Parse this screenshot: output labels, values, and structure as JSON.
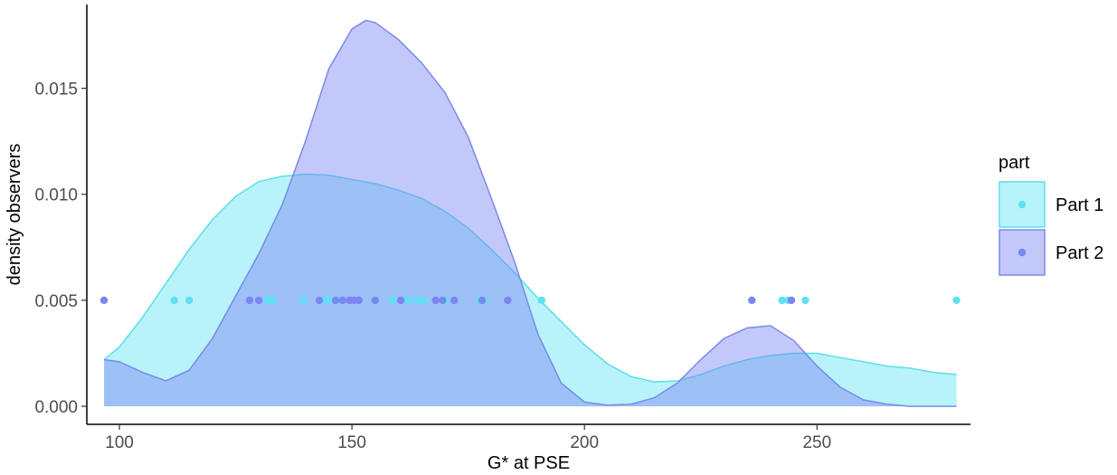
{
  "chart_data": {
    "type": "area",
    "title": "",
    "xlabel": "G* at PSE",
    "ylabel": "density observers",
    "xlim": [
      93,
      283
    ],
    "ylim": [
      -0.00085,
      0.01895
    ],
    "x_ticks": [
      100,
      150,
      200,
      250
    ],
    "x_tick_labels": [
      "100",
      "150",
      "200",
      "250"
    ],
    "y_ticks": [
      0.0,
      0.005,
      0.01,
      0.015
    ],
    "y_tick_labels": [
      "0.000",
      "0.005",
      "0.010",
      "0.015"
    ],
    "grid": false,
    "legend": {
      "title": "part",
      "placement": "right"
    },
    "point_y": 0.005,
    "series": [
      {
        "name": "Part 1",
        "fill": "#62E4F5",
        "fill_opacity": 0.45,
        "stroke": "#5CDDEB",
        "point_color": "#5FE0F5",
        "density_x": [
          96.7,
          100,
          105,
          110,
          115,
          120,
          125,
          130,
          135,
          140,
          145,
          150,
          155,
          160,
          165,
          170,
          175,
          180,
          185,
          190,
          195,
          200,
          205,
          210,
          215,
          220,
          225,
          230,
          235,
          240,
          245,
          250,
          255,
          260,
          265,
          270,
          275,
          280
        ],
        "density_y": [
          0.0022,
          0.0028,
          0.0042,
          0.0058,
          0.0074,
          0.0088,
          0.0099,
          0.0106,
          0.01085,
          0.01095,
          0.0109,
          0.0107,
          0.0105,
          0.0102,
          0.0098,
          0.0092,
          0.0084,
          0.0074,
          0.0063,
          0.0051,
          0.004,
          0.0029,
          0.002,
          0.0014,
          0.00115,
          0.0012,
          0.0015,
          0.0019,
          0.0022,
          0.0024,
          0.0025,
          0.0025,
          0.0023,
          0.0021,
          0.0019,
          0.0018,
          0.0016,
          0.0015
        ],
        "points": [
          111.8,
          115,
          131.8,
          133,
          139.6,
          144,
          145.5,
          147,
          150.5,
          158.8,
          162,
          164,
          165.5,
          170,
          177.5,
          178.5,
          190.8,
          242.5,
          243.8,
          247.5,
          280
        ]
      },
      {
        "name": "Part 2",
        "fill": "#7B86F5",
        "fill_opacity": 0.45,
        "stroke": "#7A8BE8",
        "point_color": "#7B86F0",
        "density_x": [
          96.7,
          100,
          105,
          110,
          115,
          120,
          125,
          130,
          135,
          140,
          145,
          150,
          153,
          155,
          160,
          165,
          170,
          175,
          180,
          185,
          190,
          195,
          200,
          205,
          210,
          215,
          220,
          225,
          230,
          235,
          240,
          245,
          250,
          255,
          260,
          265,
          270,
          275,
          280
        ],
        "density_y": [
          0.0022,
          0.0021,
          0.0016,
          0.0012,
          0.0017,
          0.0032,
          0.0052,
          0.0072,
          0.0095,
          0.0125,
          0.0159,
          0.0178,
          0.0182,
          0.0181,
          0.0173,
          0.0162,
          0.0148,
          0.0127,
          0.0098,
          0.0068,
          0.0034,
          0.0011,
          0.0002,
          5e-05,
          0.0001,
          0.0004,
          0.0011,
          0.0022,
          0.0032,
          0.0037,
          0.0038,
          0.0031,
          0.0019,
          0.0009,
          0.0003,
          0.0001,
          0.0,
          0.0,
          0.0
        ],
        "points": [
          96.7,
          128,
          130,
          143,
          146.5,
          148,
          149.5,
          150.5,
          151.5,
          155,
          160.5,
          168,
          169.5,
          172,
          178,
          183.5,
          236,
          244.5
        ]
      }
    ]
  }
}
